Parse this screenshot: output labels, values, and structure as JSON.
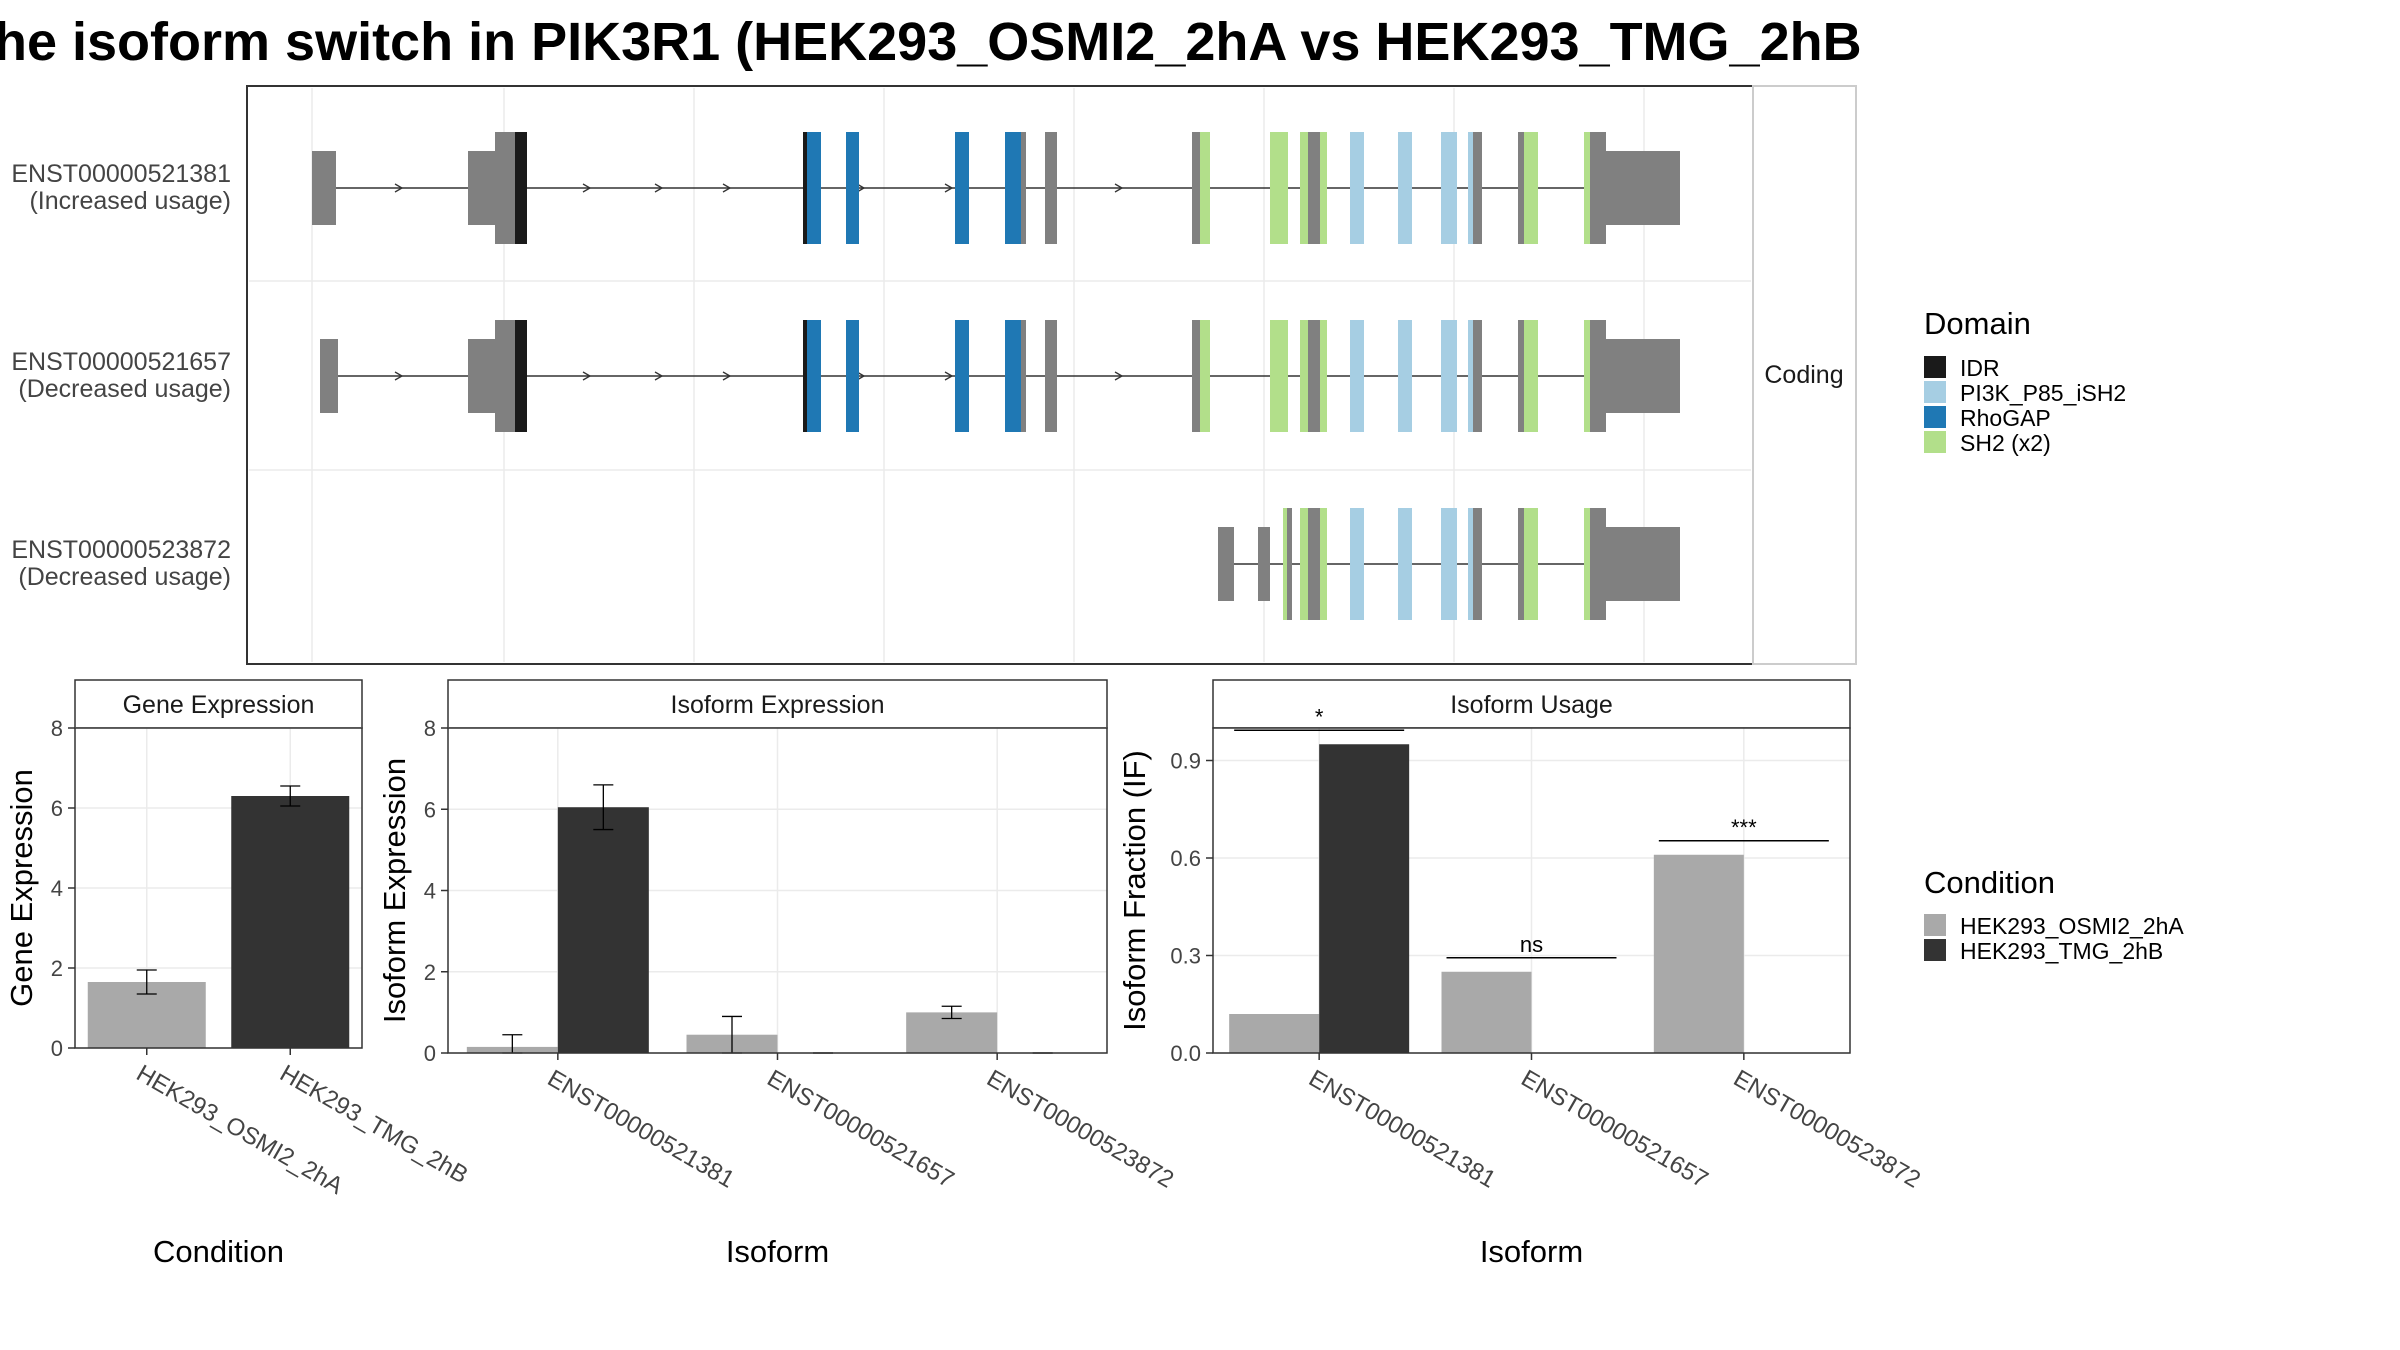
{
  "title": "he isoform switch in PIK3R1 (HEK293_OSMI2_2hA vs HEK293_TMG_2hB",
  "colors": {
    "IDR": "#1a1a1a",
    "PI3K_P85_iSH2": "#a6cee3",
    "RhoGAP": "#1f78b4",
    "SH2 (x2)": "#b2df8a",
    "noncoding_exon": "#808080",
    "cond_a": "#a9a9a9",
    "cond_b": "#333333"
  },
  "structure": {
    "facet_label": "Coding",
    "isoforms": [
      {
        "id": "ENST00000521381",
        "usage": "(Increased usage)"
      },
      {
        "id": "ENST00000521657",
        "usage": "(Decreased usage)"
      },
      {
        "id": "ENST00000523872",
        "usage": "(Decreased usage)"
      }
    ]
  },
  "legend_domain": {
    "title": "Domain",
    "items": [
      "IDR",
      "PI3K_P85_iSH2",
      "RhoGAP",
      "SH2 (x2)"
    ]
  },
  "legend_condition": {
    "title": "Condition",
    "items": [
      "HEK293_OSMI2_2hA",
      "HEK293_TMG_2hB"
    ]
  },
  "chart_data": [
    {
      "type": "bar",
      "facet": "Gene Expression",
      "ylabel": "Gene Expression",
      "xlabel": "Condition",
      "categories": [
        "HEK293_OSMI2_2hA",
        "HEK293_TMG_2hB"
      ],
      "values": [
        1.65,
        6.3
      ],
      "errors": [
        [
          1.35,
          1.95
        ],
        [
          6.05,
          6.55
        ]
      ],
      "ylim": [
        0,
        8
      ],
      "yticks": [
        0,
        2,
        4,
        6,
        8
      ]
    },
    {
      "type": "bar",
      "facet": "Isoform Expression",
      "ylabel": "Isoform Expression",
      "xlabel": "Isoform",
      "categories": [
        "ENST00000521381",
        "ENST00000521657",
        "ENST00000523872"
      ],
      "series": [
        {
          "name": "HEK293_OSMI2_2hA",
          "values": [
            0.15,
            0.45,
            1.0
          ],
          "errors": [
            [
              0.0,
              0.45
            ],
            [
              0.0,
              0.9
            ],
            [
              0.85,
              1.15
            ]
          ]
        },
        {
          "name": "HEK293_TMG_2hB",
          "values": [
            6.05,
            0.0,
            0.0
          ],
          "errors": [
            [
              5.5,
              6.6
            ],
            [
              0.0,
              0.0
            ],
            [
              0.0,
              0.0
            ]
          ]
        }
      ],
      "ylim": [
        0,
        8
      ],
      "yticks": [
        0,
        2,
        4,
        6,
        8
      ]
    },
    {
      "type": "bar",
      "facet": "Isoform Usage",
      "ylabel": "Isoform Fraction (IF)",
      "xlabel": "Isoform",
      "categories": [
        "ENST00000521381",
        "ENST00000521657",
        "ENST00000523872"
      ],
      "series": [
        {
          "name": "HEK293_OSMI2_2hA",
          "values": [
            0.12,
            0.25,
            0.61
          ]
        },
        {
          "name": "HEK293_TMG_2hB",
          "values": [
            0.95,
            0.0,
            0.0
          ]
        }
      ],
      "significance": [
        "*",
        "ns",
        "***"
      ],
      "ylim": [
        0,
        1.0
      ],
      "yticks": [
        "0.0",
        "0.3",
        "0.6",
        "0.9"
      ]
    }
  ]
}
